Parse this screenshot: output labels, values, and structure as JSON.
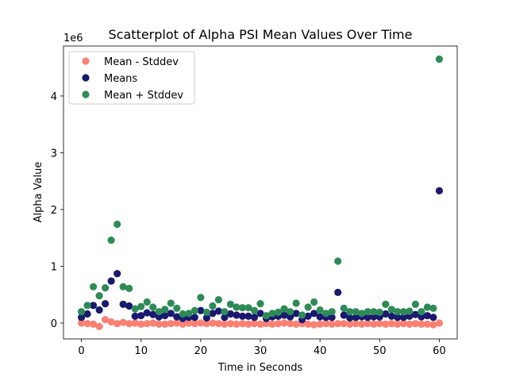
{
  "chart_data": {
    "type": "scatter",
    "title": "Scatterplot of Alpha PSI Mean Values Over Time",
    "xlabel": "Time in Seconds",
    "ylabel": "Alpha Value",
    "y_offset_label": "1e6",
    "xlim": [
      -3,
      63
    ],
    "ylim": [
      -280000,
      4880000
    ],
    "x_ticks": [
      0,
      10,
      20,
      30,
      40,
      50,
      60
    ],
    "y_ticks": [
      0,
      1000000,
      2000000,
      3000000,
      4000000
    ],
    "y_tick_labels": [
      "0",
      "1",
      "2",
      "3",
      "4"
    ],
    "grid": false,
    "legend_position": "top-left",
    "x": [
      0,
      1,
      2,
      3,
      4,
      5,
      6,
      7,
      8,
      9,
      10,
      11,
      12,
      13,
      14,
      15,
      16,
      17,
      18,
      19,
      20,
      21,
      22,
      23,
      24,
      25,
      26,
      27,
      28,
      29,
      30,
      31,
      32,
      33,
      34,
      35,
      36,
      37,
      38,
      39,
      40,
      41,
      42,
      43,
      44,
      45,
      46,
      47,
      48,
      49,
      50,
      51,
      52,
      53,
      54,
      55,
      56,
      57,
      58,
      59,
      60
    ],
    "series": [
      {
        "name": "Mean - Stddev",
        "color": "#fa8072",
        "values": [
          0,
          -10000,
          -20000,
          -60000,
          60000,
          20000,
          -10000,
          10000,
          -10000,
          0,
          -20000,
          -10000,
          0,
          -20000,
          -20000,
          -10000,
          0,
          -20000,
          0,
          -10000,
          0,
          -10000,
          0,
          -10000,
          -20000,
          -10000,
          -20000,
          -10000,
          -20000,
          -10000,
          -20000,
          -10000,
          -20000,
          -10000,
          0,
          -10000,
          -20000,
          -10000,
          -20000,
          -30000,
          -20000,
          -10000,
          -20000,
          -10000,
          -10000,
          -20000,
          -10000,
          -20000,
          -10000,
          -20000,
          -10000,
          -20000,
          -10000,
          -20000,
          -10000,
          -20000,
          -10000,
          -20000,
          -20000,
          -30000,
          0
        ]
      },
      {
        "name": "Means",
        "color": "#191970",
        "values": [
          100000,
          160000,
          310000,
          230000,
          340000,
          740000,
          870000,
          330000,
          300000,
          120000,
          130000,
          180000,
          150000,
          110000,
          130000,
          170000,
          110000,
          80000,
          100000,
          100000,
          220000,
          90000,
          170000,
          210000,
          100000,
          160000,
          140000,
          120000,
          120000,
          100000,
          170000,
          80000,
          110000,
          120000,
          140000,
          110000,
          170000,
          60000,
          120000,
          170000,
          110000,
          100000,
          100000,
          540000,
          140000,
          90000,
          100000,
          110000,
          100000,
          110000,
          110000,
          160000,
          120000,
          100000,
          100000,
          120000,
          150000,
          110000,
          130000,
          100000,
          2330000
        ]
      },
      {
        "name": "Mean + Stddev",
        "color": "#2e8b57",
        "values": [
          200000,
          310000,
          640000,
          480000,
          620000,
          1460000,
          1740000,
          640000,
          610000,
          250000,
          290000,
          370000,
          280000,
          200000,
          240000,
          350000,
          260000,
          160000,
          170000,
          220000,
          450000,
          190000,
          300000,
          410000,
          200000,
          330000,
          280000,
          270000,
          270000,
          220000,
          340000,
          130000,
          170000,
          190000,
          250000,
          200000,
          350000,
          140000,
          280000,
          370000,
          230000,
          170000,
          200000,
          1090000,
          260000,
          200000,
          200000,
          170000,
          200000,
          200000,
          190000,
          330000,
          240000,
          200000,
          200000,
          210000,
          330000,
          200000,
          280000,
          260000,
          4650000
        ]
      }
    ]
  }
}
